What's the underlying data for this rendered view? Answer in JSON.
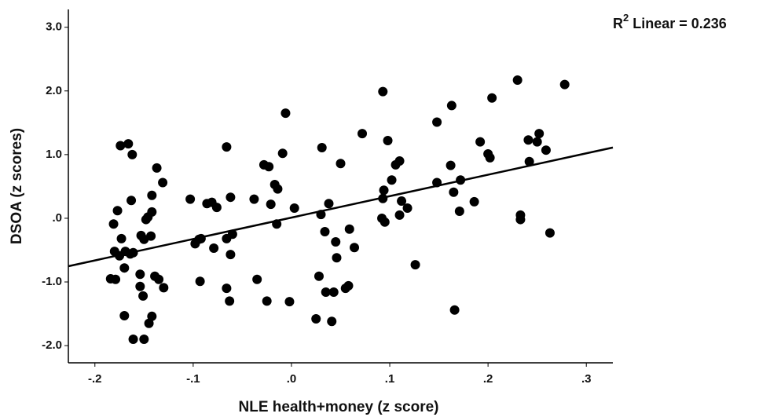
{
  "chart_data": {
    "type": "scatter",
    "x_label": "NLE health+money (z score)",
    "y_label": "DSOA (z scores)",
    "annotation": {
      "prefix": "R",
      "superscript": "2",
      "suffix": "Linear = 0.236"
    },
    "color": "#000000",
    "xlim": [
      -0.227,
      0.327
    ],
    "ylim": [
      -2.27,
      3.28
    ],
    "xticks": [
      {
        "value": -0.2,
        "label": "-.2"
      },
      {
        "value": -0.1,
        "label": "-.1"
      },
      {
        "value": 0,
        "label": ".0"
      },
      {
        "value": 0.1,
        "label": ".1"
      },
      {
        "value": 0.2,
        "label": ".2"
      },
      {
        "value": 0.3,
        "label": ".3"
      }
    ],
    "yticks": [
      {
        "value": -2,
        "label": "-2.0"
      },
      {
        "value": -1,
        "label": "-1.0"
      },
      {
        "value": 0,
        "label": ".0"
      },
      {
        "value": 1,
        "label": "1.0"
      },
      {
        "value": 2,
        "label": "2.0"
      },
      {
        "value": 3,
        "label": "3.0"
      }
    ],
    "fit_line": {
      "x": [
        -0.227,
        0.327
      ],
      "y": [
        -0.753,
        1.111
      ]
    },
    "x": [
      -0.184,
      -0.179,
      -0.181,
      -0.177,
      -0.174,
      -0.166,
      -0.162,
      -0.18,
      -0.175,
      -0.173,
      -0.169,
      -0.17,
      -0.164,
      -0.161,
      -0.163,
      -0.17,
      -0.161,
      -0.15,
      -0.154,
      -0.154,
      -0.151,
      -0.153,
      -0.15,
      -0.148,
      -0.146,
      -0.143,
      -0.142,
      -0.142,
      -0.139,
      -0.135,
      -0.137,
      -0.131,
      -0.13,
      -0.145,
      -0.142,
      -0.103,
      -0.098,
      -0.094,
      -0.092,
      -0.093,
      -0.086,
      -0.081,
      -0.079,
      -0.076,
      -0.066,
      -0.066,
      -0.062,
      -0.06,
      -0.062,
      -0.066,
      -0.063,
      -0.038,
      -0.035,
      -0.028,
      -0.023,
      -0.021,
      -0.025,
      -0.017,
      -0.014,
      -0.015,
      -0.006,
      -0.009,
      -0.002,
      0.003,
      0.025,
      0.028,
      0.031,
      0.03,
      0.034,
      0.038,
      0.035,
      0.041,
      0.043,
      0.045,
      0.046,
      0.05,
      0.055,
      0.058,
      0.059,
      0.064,
      0.072,
      0.093,
      0.093,
      0.094,
      0.092,
      0.095,
      0.098,
      0.102,
      0.106,
      0.11,
      0.112,
      0.11,
      0.118,
      0.126,
      0.148,
      0.148,
      0.162,
      0.163,
      0.165,
      0.166,
      0.172,
      0.171,
      0.186,
      0.192,
      0.2,
      0.202,
      0.204,
      0.23,
      0.233,
      0.233,
      0.241,
      0.242,
      0.25,
      0.252,
      0.259,
      0.263,
      0.278
    ],
    "values": [
      -0.95,
      -0.96,
      -0.09,
      0.12,
      1.14,
      1.17,
      1.0,
      -0.52,
      -0.59,
      -0.32,
      -0.52,
      -0.78,
      -0.56,
      -0.54,
      0.28,
      -1.53,
      -1.9,
      -1.9,
      -0.88,
      -1.07,
      -1.22,
      -0.27,
      -0.33,
      -0.02,
      0.02,
      -0.28,
      0.36,
      0.1,
      -0.91,
      -0.96,
      0.79,
      0.56,
      -1.09,
      -1.65,
      -1.54,
      0.3,
      -0.4,
      -0.33,
      -0.32,
      -0.99,
      0.23,
      0.25,
      -0.47,
      0.17,
      1.12,
      -0.32,
      0.33,
      -0.25,
      -0.57,
      -1.1,
      -1.3,
      0.3,
      -0.96,
      0.84,
      0.81,
      0.22,
      -1.3,
      0.53,
      0.46,
      -0.09,
      1.65,
      1.02,
      -1.31,
      0.16,
      -1.58,
      -0.91,
      1.11,
      0.06,
      -0.21,
      0.23,
      -1.16,
      -1.62,
      -1.16,
      -0.37,
      -0.62,
      0.86,
      -1.1,
      -1.06,
      -0.17,
      -0.46,
      1.33,
      1.99,
      0.31,
      0.44,
      0.0,
      -0.06,
      1.22,
      0.6,
      0.84,
      0.9,
      0.27,
      0.05,
      0.16,
      -0.73,
      1.51,
      0.56,
      0.83,
      1.77,
      0.41,
      -1.44,
      0.6,
      0.11,
      0.26,
      1.2,
      1.01,
      0.95,
      1.89,
      2.17,
      0.05,
      -0.02,
      1.23,
      0.89,
      1.2,
      1.33,
      1.07,
      -0.23,
      2.1
    ]
  }
}
